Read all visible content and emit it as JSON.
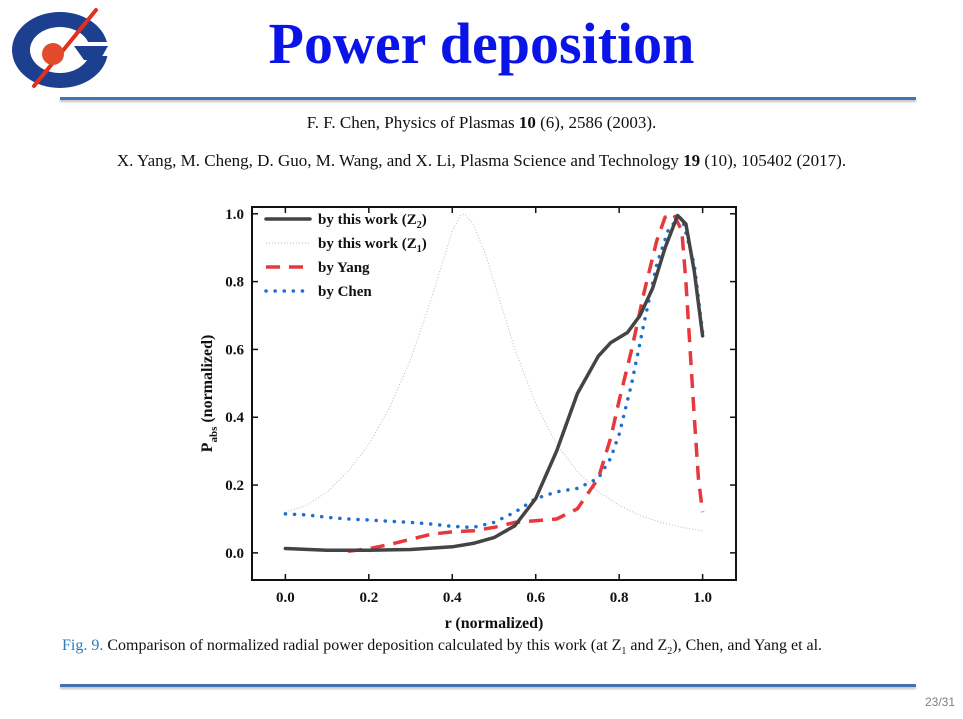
{
  "slide": {
    "title": "Power deposition",
    "page_number": "23/31",
    "accent_color": "#0a14e6",
    "rule_color": "#4472b4"
  },
  "references": [
    {
      "prefix": "F. F. Chen, Physics of Plasmas ",
      "volume": "10",
      "suffix": " (6), 2586 (2003)."
    },
    {
      "prefix": "X. Yang, M. Cheng, D. Guo, M. Wang, and X. Li, Plasma Science and Technology ",
      "volume": "19",
      "suffix": " (10), 105402 (2017)."
    }
  ],
  "figure": {
    "label": "Fig. 9.",
    "caption_a": " Comparison of normalized radial power deposition calculated by this work (at Z",
    "caption_b": " and Z",
    "caption_c": "), Chen, and Yang et al.",
    "sub1": "1",
    "sub2": "2"
  },
  "chart_data": {
    "type": "line",
    "xlabel": "r (normalized)",
    "ylabel_main": "P",
    "ylabel_sub": "abs",
    "ylabel_tail": " (normalized)",
    "xlim": [
      -0.08,
      1.08
    ],
    "ylim": [
      -0.08,
      1.02
    ],
    "xticks": [
      0.0,
      0.2,
      0.4,
      0.6,
      0.8,
      1.0
    ],
    "yticks": [
      0.0,
      0.2,
      0.4,
      0.6,
      0.8,
      1.0
    ],
    "xtick_labels": [
      "0.0",
      "0.2",
      "0.4",
      "0.6",
      "0.8",
      "1.0"
    ],
    "ytick_labels": [
      "0.0",
      "0.2",
      "0.4",
      "0.6",
      "0.8",
      "1.0"
    ],
    "legend_position": "top-left",
    "series": [
      {
        "name": "by this work (Z2)",
        "label_main": "by this work (Z",
        "label_sub": "2",
        "label_tail": ")",
        "style": "solid-thick",
        "color": "#444444",
        "x": [
          0.0,
          0.1,
          0.2,
          0.3,
          0.4,
          0.45,
          0.5,
          0.55,
          0.6,
          0.65,
          0.7,
          0.75,
          0.78,
          0.82,
          0.85,
          0.88,
          0.91,
          0.94,
          0.96,
          0.98,
          1.0
        ],
        "y": [
          0.013,
          0.008,
          0.008,
          0.01,
          0.018,
          0.028,
          0.045,
          0.08,
          0.16,
          0.3,
          0.47,
          0.58,
          0.62,
          0.65,
          0.7,
          0.78,
          0.9,
          0.995,
          0.97,
          0.83,
          0.64
        ]
      },
      {
        "name": "by this work (Z1)",
        "label_main": "by this work (Z",
        "label_sub": "1",
        "label_tail": ")",
        "style": "thin",
        "color": "#bbbbbb",
        "x": [
          0.0,
          0.05,
          0.1,
          0.15,
          0.2,
          0.25,
          0.3,
          0.35,
          0.38,
          0.4,
          0.42,
          0.43,
          0.45,
          0.48,
          0.5,
          0.55,
          0.6,
          0.65,
          0.7,
          0.75,
          0.8,
          0.85,
          0.9,
          0.95,
          1.0
        ],
        "y": [
          0.12,
          0.14,
          0.18,
          0.24,
          0.32,
          0.43,
          0.57,
          0.75,
          0.87,
          0.95,
          0.995,
          1.0,
          0.97,
          0.88,
          0.8,
          0.6,
          0.44,
          0.32,
          0.24,
          0.18,
          0.14,
          0.11,
          0.09,
          0.075,
          0.065
        ]
      },
      {
        "name": "by Yang",
        "label_main": "by Yang",
        "label_sub": "",
        "label_tail": "",
        "style": "dashed",
        "color": "#e8383d",
        "x": [
          0.15,
          0.2,
          0.25,
          0.3,
          0.35,
          0.4,
          0.45,
          0.5,
          0.55,
          0.6,
          0.65,
          0.7,
          0.75,
          0.78,
          0.8,
          0.83,
          0.86,
          0.89,
          0.91,
          0.93,
          0.95,
          0.96,
          0.97,
          0.98,
          0.99,
          1.0
        ],
        "y": [
          0.005,
          0.012,
          0.025,
          0.04,
          0.055,
          0.062,
          0.065,
          0.075,
          0.09,
          0.095,
          0.1,
          0.13,
          0.22,
          0.34,
          0.45,
          0.6,
          0.77,
          0.92,
          0.99,
          1.0,
          0.95,
          0.8,
          0.6,
          0.4,
          0.22,
          0.12
        ]
      },
      {
        "name": "by Chen",
        "label_main": "by Chen",
        "label_sub": "",
        "label_tail": "",
        "style": "dotted",
        "color": "#1f6fd0",
        "x": [
          0.0,
          0.05,
          0.1,
          0.15,
          0.2,
          0.25,
          0.3,
          0.35,
          0.4,
          0.45,
          0.5,
          0.55,
          0.6,
          0.65,
          0.7,
          0.75,
          0.78,
          0.8,
          0.83,
          0.86,
          0.89,
          0.92,
          0.95,
          0.98,
          1.0
        ],
        "y": [
          0.115,
          0.112,
          0.105,
          0.1,
          0.097,
          0.093,
          0.09,
          0.085,
          0.078,
          0.075,
          0.09,
          0.12,
          0.16,
          0.18,
          0.19,
          0.22,
          0.28,
          0.35,
          0.5,
          0.68,
          0.85,
          0.96,
          0.99,
          0.85,
          0.65
        ]
      }
    ]
  }
}
